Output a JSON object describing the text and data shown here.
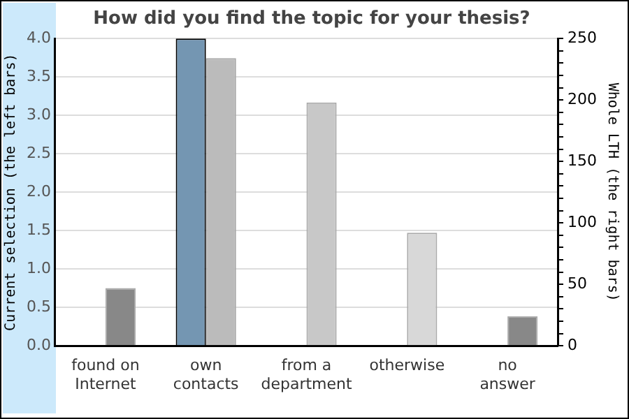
{
  "chart_data": {
    "type": "bar",
    "title": "How did you find the topic for your thesis?",
    "ylabel": "Current selection (the left bars)",
    "y2label": "Whole LTH (the right bars)",
    "categories": [
      "found on Internet",
      "own contacts",
      "from a department",
      "otherwise",
      "no answer"
    ],
    "series": [
      {
        "colors": [
          "#7496b2",
          "#7496b2",
          "#7496b2",
          "#7496b2",
          "#7496b2"
        ],
        "values": [
          null,
          4,
          null,
          null,
          null
        ]
      },
      {
        "axis": "y2",
        "colors": [
          "#888888",
          "#bbbbbb",
          "#c8c8c8",
          "#d8d8d8",
          "#888888"
        ],
        "values": [
          47,
          234,
          198,
          92,
          24
        ]
      }
    ],
    "ylim": [
      0,
      4
    ],
    "yticks": [
      {
        "value": 0,
        "label": "0.0"
      },
      {
        "value": 0.5,
        "label": "0.5"
      },
      {
        "value": 1,
        "label": "1.0"
      },
      {
        "value": 1.5,
        "label": "1.5"
      },
      {
        "value": 2,
        "label": "2.0"
      },
      {
        "value": 2.5,
        "label": "2.5"
      },
      {
        "value": 3,
        "label": "3.0"
      },
      {
        "value": 3.5,
        "label": "3.5"
      },
      {
        "value": 4,
        "label": "4.0"
      }
    ],
    "y2lim": [
      0,
      250
    ],
    "y2ticks": [
      0,
      {
        "value": 10,
        "label": null
      },
      {
        "value": 20,
        "label": null
      },
      {
        "value": 30,
        "label": null
      },
      {
        "value": 40,
        "label": null
      },
      50,
      {
        "value": 60,
        "label": null
      },
      {
        "value": 70,
        "label": null
      },
      {
        "value": 80,
        "label": null
      },
      {
        "value": 90,
        "label": null
      },
      100,
      {
        "value": 110,
        "label": null
      },
      {
        "value": 120,
        "label": null
      },
      {
        "value": 130,
        "label": null
      },
      {
        "value": 140,
        "label": null
      },
      150,
      {
        "value": 160,
        "label": null
      },
      {
        "value": 170,
        "label": null
      },
      {
        "value": 180,
        "label": null
      },
      {
        "value": 190,
        "label": null
      },
      200,
      {
        "value": 210,
        "label": null
      },
      {
        "value": 220,
        "label": null
      },
      {
        "value": 230,
        "label": null
      },
      {
        "value": 240,
        "label": null
      },
      250
    ],
    "grid": "y",
    "legend": false
  }
}
